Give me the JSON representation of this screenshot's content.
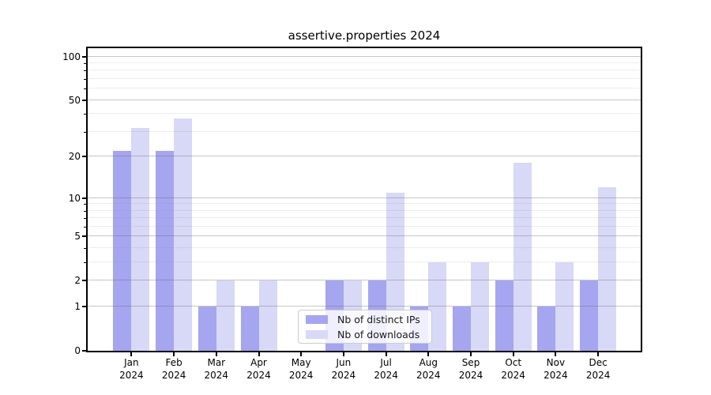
{
  "title": "assertive.properties 2024",
  "chart_data": {
    "type": "bar",
    "title": "assertive.properties 2024",
    "categories": [
      "Jan 2024",
      "Feb 2024",
      "Mar 2024",
      "Apr 2024",
      "May 2024",
      "Jun 2024",
      "Jul 2024",
      "Aug 2024",
      "Sep 2024",
      "Oct 2024",
      "Nov 2024",
      "Dec 2024"
    ],
    "series": [
      {
        "name": "Nb of distinct IPs",
        "color": "#a5a5f0",
        "values": [
          22,
          22,
          1,
          1,
          0,
          2,
          2,
          1,
          1,
          2,
          1,
          2
        ]
      },
      {
        "name": "Nb of downloads",
        "color": "#d8d8f7",
        "values": [
          32,
          37,
          2,
          2,
          0,
          2,
          11,
          3,
          3,
          18,
          3,
          12
        ]
      }
    ],
    "yscale": "log1p",
    "ylim": [
      0,
      115
    ],
    "yticks": [
      0,
      1,
      2,
      5,
      10,
      20,
      50,
      100
    ],
    "yticks_minor": [
      3,
      4,
      6,
      7,
      8,
      9,
      30,
      40,
      60,
      70,
      80,
      90
    ],
    "grid": "horizontal",
    "legend_position": "lower center"
  },
  "style": {
    "spine_color": "#000000",
    "grid_major_hex": "#c6c6c6",
    "grid_minor_hex": "#eeeeee",
    "legend_border": "#cccccc",
    "background": "#ffffff"
  }
}
